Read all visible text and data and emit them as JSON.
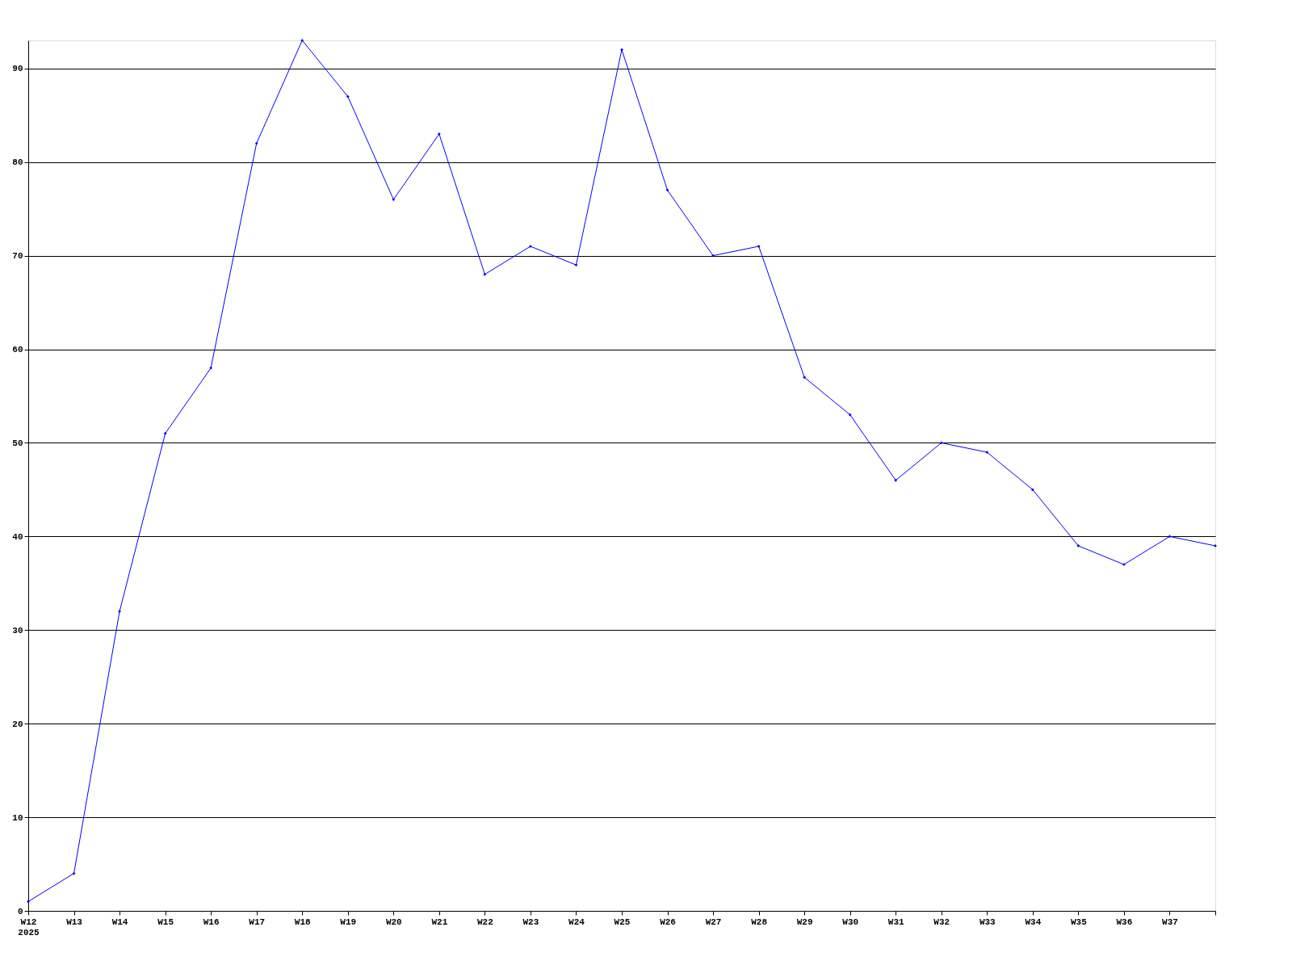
{
  "chart_data": {
    "type": "line",
    "categories": [
      "W12\n2025",
      "W13",
      "W14",
      "W15",
      "W16",
      "W17",
      "W18",
      "W19",
      "W20",
      "W21",
      "W22",
      "W23",
      "W24",
      "W25",
      "W26",
      "W27",
      "W28",
      "W29",
      "W30",
      "W31",
      "W32",
      "W33",
      "W34",
      "W35",
      "W36",
      "W37",
      null
    ],
    "series": [
      {
        "color": "#0000ff",
        "values": [
          1,
          4,
          32,
          51,
          58,
          82,
          93,
          87,
          76,
          83,
          68,
          71,
          69,
          92,
          77,
          70,
          71,
          57,
          53,
          46,
          50,
          49,
          45,
          39,
          37,
          40,
          39
        ]
      }
    ],
    "ylim": [
      0,
      93
    ],
    "yticks": [
      0,
      10,
      20,
      30,
      40,
      50,
      60,
      70,
      80,
      90
    ],
    "grid": "y",
    "marker": "diamond",
    "line_style": "solid"
  }
}
